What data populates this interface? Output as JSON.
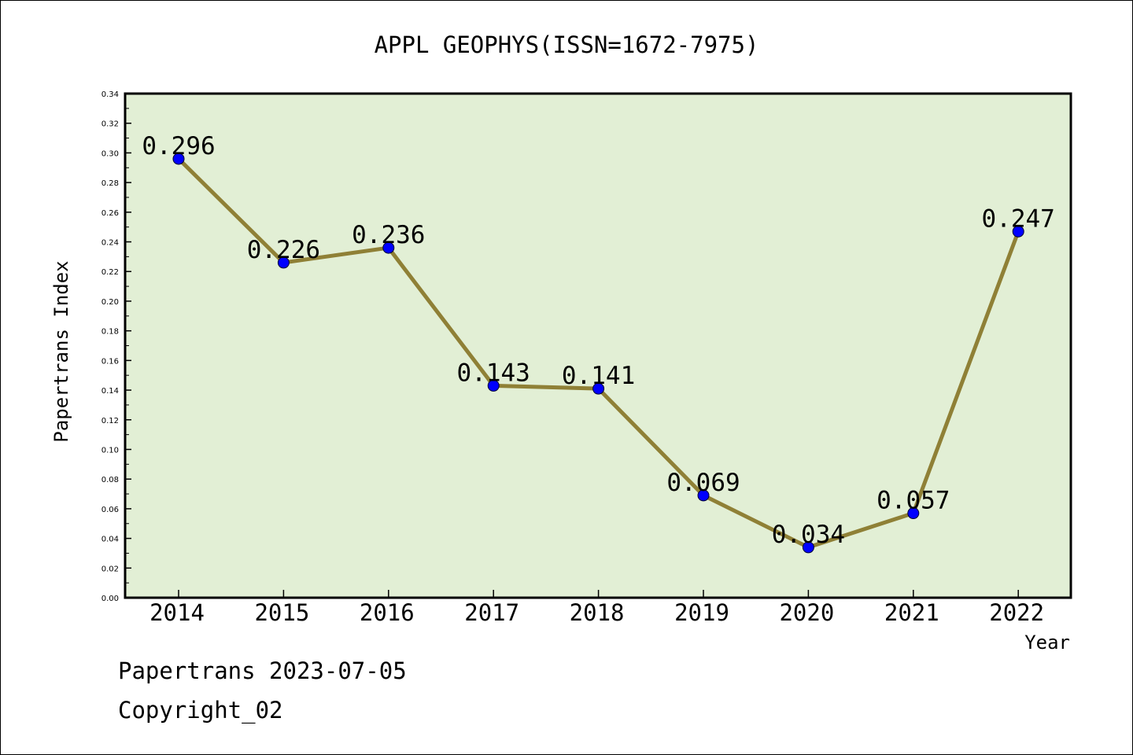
{
  "chart_data": {
    "type": "line",
    "title": "APPL GEOPHYS(ISSN=1672-7975)",
    "xlabel": "Year",
    "ylabel": "Papertrans Index",
    "categories": [
      "2014",
      "2015",
      "2016",
      "2017",
      "2018",
      "2019",
      "2020",
      "2021",
      "2022"
    ],
    "series": [
      {
        "values": [
          0.296,
          0.226,
          0.236,
          0.143,
          0.141,
          0.069,
          0.034,
          0.057,
          0.247
        ]
      }
    ],
    "data_labels": [
      "0.296",
      "0.226",
      "0.236",
      "0.143",
      "0.141",
      "0.069",
      "0.034",
      "0.057",
      "0.247"
    ],
    "ylim": [
      0,
      0.34
    ],
    "yticks": [
      "0.00",
      "0.02",
      "0.04",
      "0.06",
      "0.08",
      "0.10",
      "0.12",
      "0.14",
      "0.16",
      "0.18",
      "0.20",
      "0.22",
      "0.24",
      "0.26",
      "0.28",
      "0.30",
      "0.32",
      "0.34"
    ],
    "grid": false,
    "colors": {
      "plot_background": "#e2efd5",
      "line": "#8f8036",
      "marker": "#0000ff"
    }
  },
  "footer": {
    "source": "Papertrans 2023-07-05",
    "copyright": "Copyright_02"
  }
}
